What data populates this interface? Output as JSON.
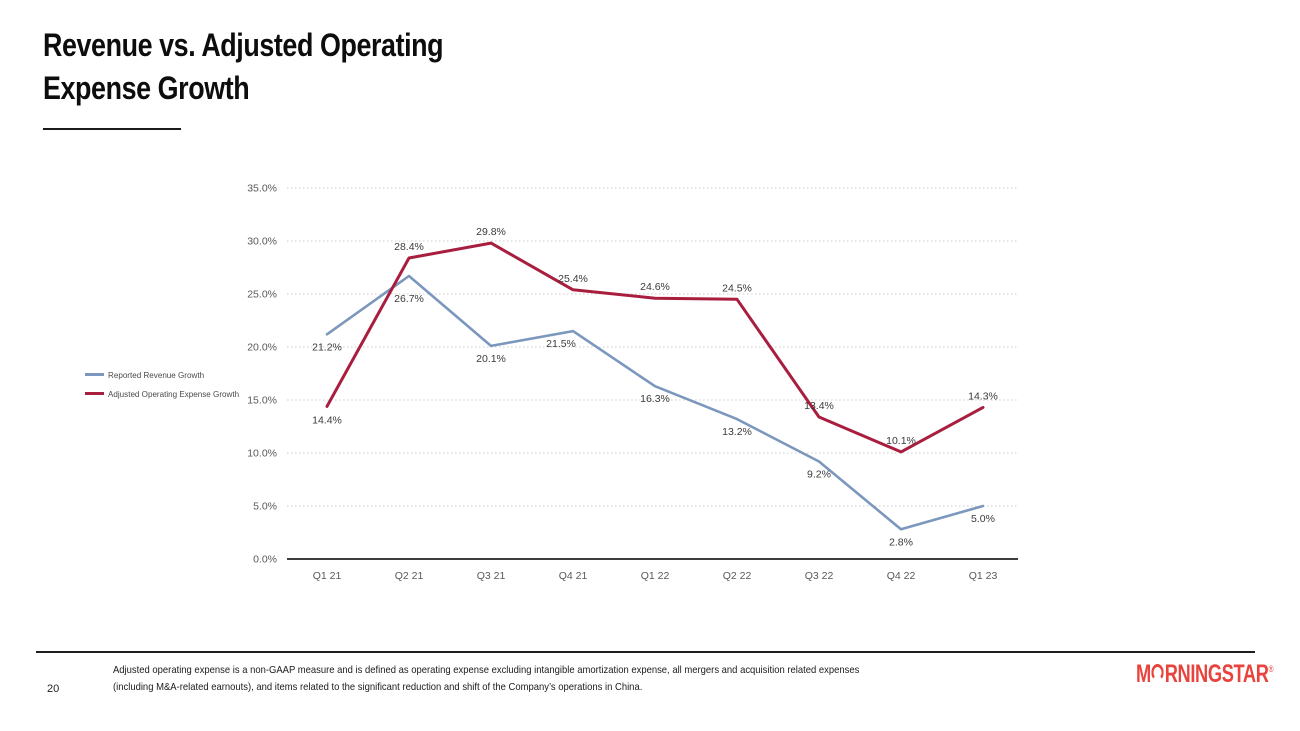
{
  "slide": {
    "title_line1": "Revenue vs. Adjusted Operating",
    "title_line2": "Expense Growth",
    "page_number": "20",
    "footnote_line1": "Adjusted operating expense is a non-GAAP measure and is defined as operating expense excluding intangible amortization expense, all mergers and acquisition related expenses",
    "footnote_line2": "(including M&A-related earnouts), and items related to the significant reduction and shift of the Company’s operations in China.",
    "logo": {
      "part1": "M",
      "ring_icon": "morningstar-open-ring",
      "part2": "RNINGSTAR",
      "registered": "®"
    }
  },
  "colors": {
    "revenue_line": "#7b97bd",
    "expense_line": "#a91e3e",
    "gridline": "#cccccc",
    "axis_line": "#3c3c3c",
    "axis_text": "#595959",
    "label_text": "#3a3a3a",
    "logo_red": "#e8433c"
  },
  "chart_data": {
    "type": "line",
    "title": "Revenue vs. Adjusted Operating Expense Growth",
    "categories": [
      "Q1 21",
      "Q2 21",
      "Q3 21",
      "Q4 21",
      "Q1 22",
      "Q2 22",
      "Q3 22",
      "Q4 22",
      "Q1 23"
    ],
    "series": [
      {
        "name": "Reported Revenue Growth",
        "color_key": "revenue_line",
        "values": [
          21.2,
          26.7,
          20.1,
          21.5,
          16.3,
          13.2,
          9.2,
          2.8,
          5.0
        ]
      },
      {
        "name": "Adjusted Operating Expense Growth",
        "color_key": "expense_line",
        "values": [
          14.4,
          28.4,
          29.8,
          25.4,
          24.6,
          24.5,
          13.4,
          10.1,
          14.3
        ]
      }
    ],
    "y_ticks": [
      "35.0%",
      "30.0%",
      "25.0%",
      "20.0%",
      "15.0%",
      "10.0%",
      "5.0%",
      "0.0%"
    ],
    "y_tick_values": [
      35,
      30,
      25,
      20,
      15,
      10,
      5,
      0
    ],
    "ylim": [
      0,
      35
    ],
    "value_suffix": "%",
    "xlabel": "",
    "ylabel": "",
    "grid": "horizontal-dotted",
    "legend_position": "left-middle",
    "data_labels": true
  }
}
